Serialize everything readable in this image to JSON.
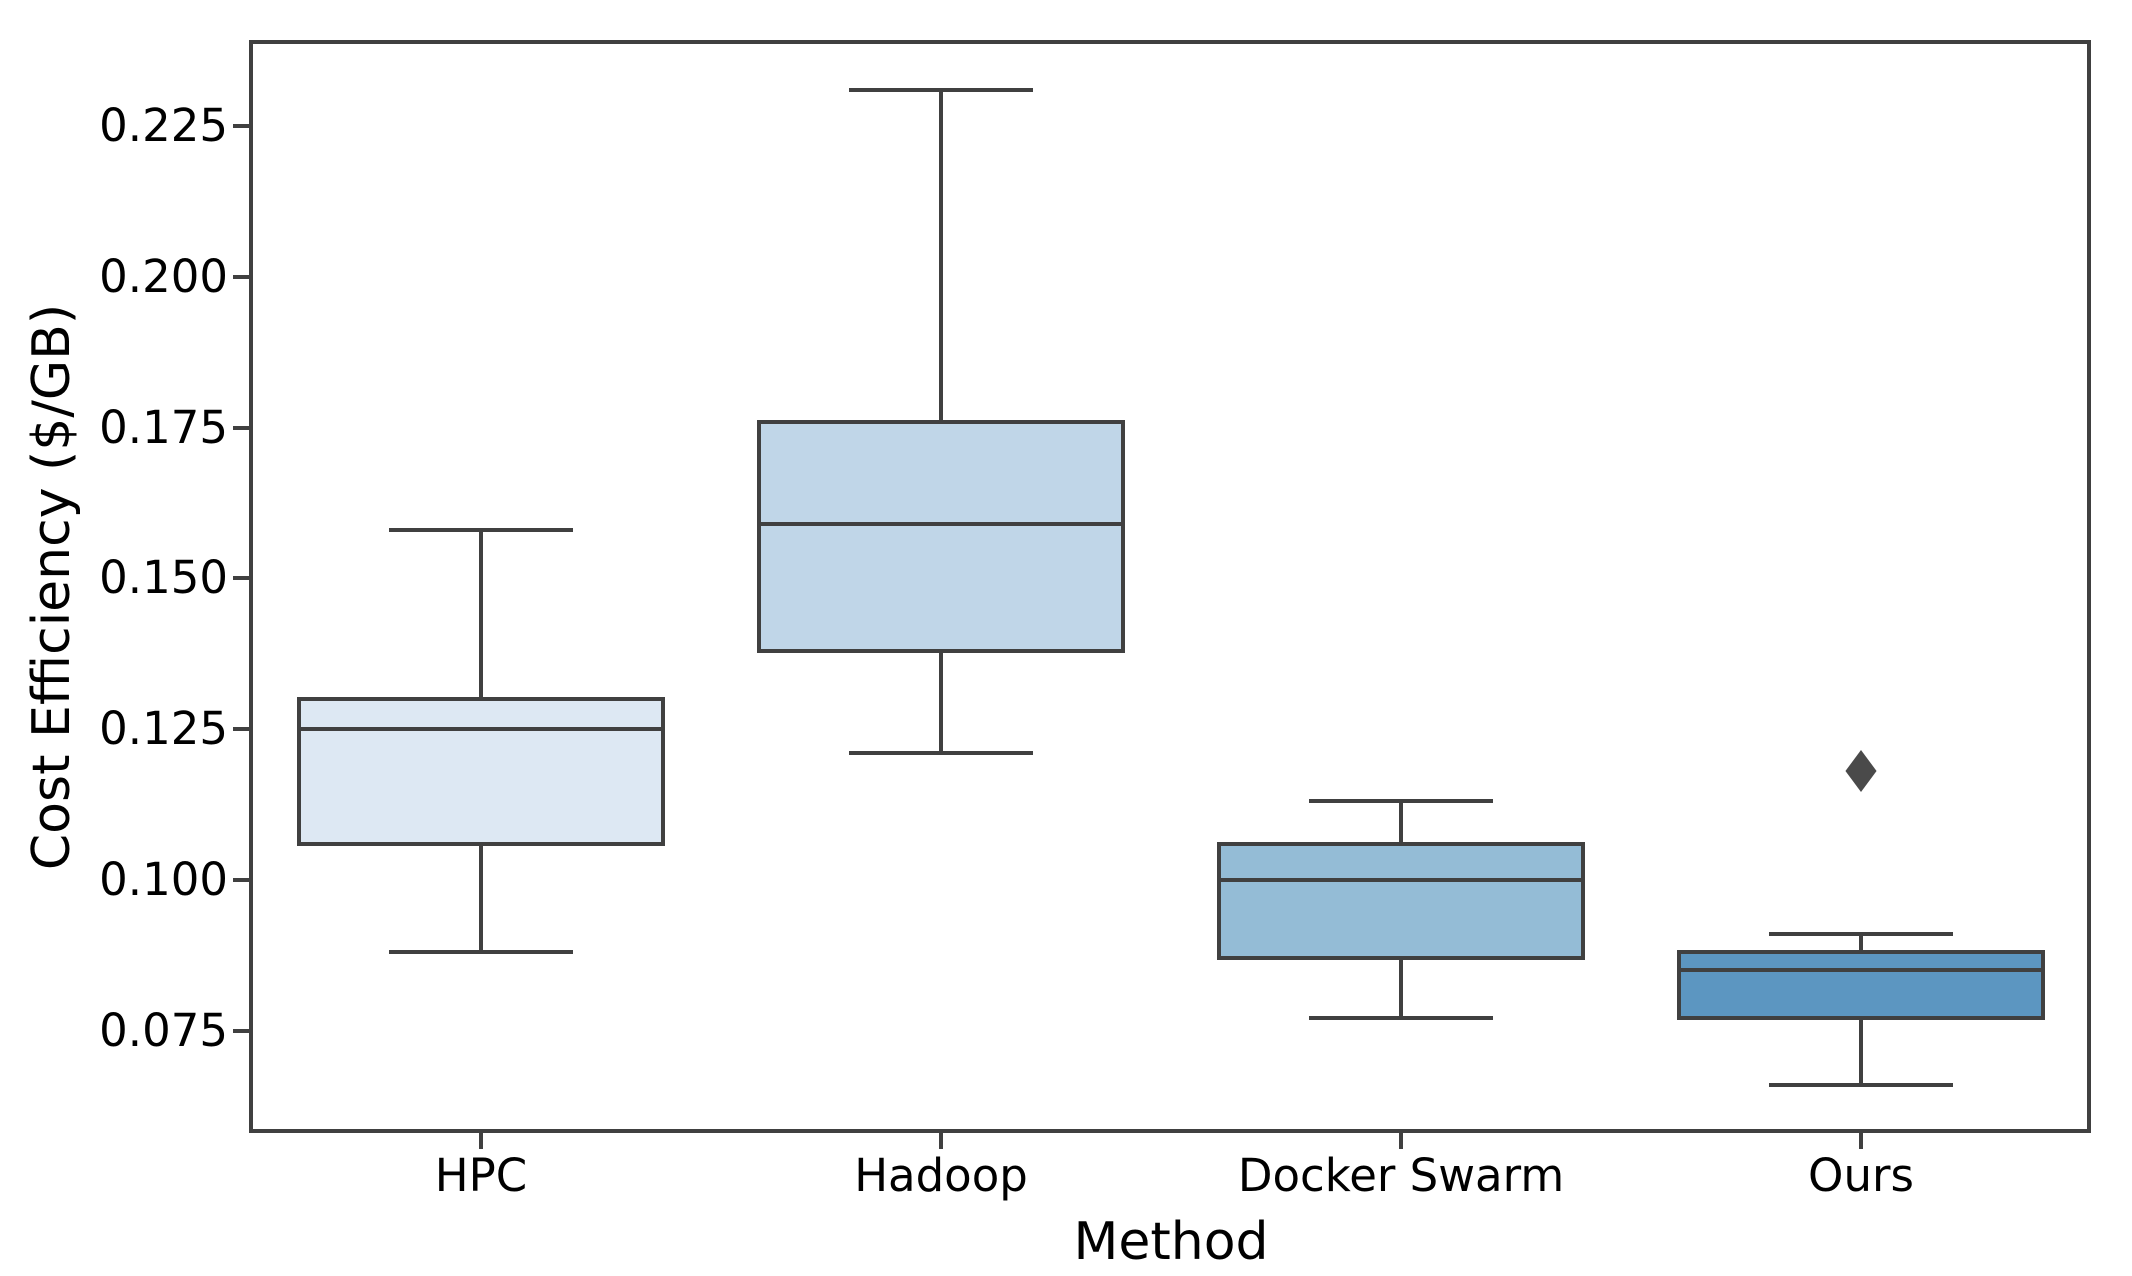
{
  "figure": {
    "background": "#ffffff"
  },
  "chart_data": {
    "type": "box",
    "title": "",
    "xlabel": "Method",
    "ylabel": "Cost Efficiency ($/GB)",
    "categories": [
      "HPC",
      "Hadoop",
      "Docker Swarm",
      "Ours"
    ],
    "ylim": [
      0.058,
      0.239
    ],
    "yticks": [
      0.075,
      0.1,
      0.125,
      0.15,
      0.175,
      0.2,
      0.225
    ],
    "ytick_decimals": 3,
    "grid": false,
    "legend": "none",
    "box_width_frac": 0.8,
    "cap_width_frac": 0.4,
    "edge_color": "#404040",
    "flier_color": "#4a4a4a",
    "boxes": [
      {
        "label": "HPC",
        "whislo": 0.088,
        "q1": 0.106,
        "med": 0.125,
        "q3": 0.13,
        "whishi": 0.158,
        "fliers": [],
        "fill": "#dde8f3"
      },
      {
        "label": "Hadoop",
        "whislo": 0.121,
        "q1": 0.138,
        "med": 0.159,
        "q3": 0.176,
        "whishi": 0.231,
        "fliers": [],
        "fill": "#c0d6e8"
      },
      {
        "label": "Docker Swarm",
        "whislo": 0.077,
        "q1": 0.087,
        "med": 0.1,
        "q3": 0.106,
        "whishi": 0.113,
        "fliers": [],
        "fill": "#94bcd6"
      },
      {
        "label": "Ours",
        "whislo": 0.066,
        "q1": 0.077,
        "med": 0.085,
        "q3": 0.088,
        "whishi": 0.091,
        "fliers": [
          0.118
        ],
        "fill": "#5c96c1"
      }
    ]
  }
}
